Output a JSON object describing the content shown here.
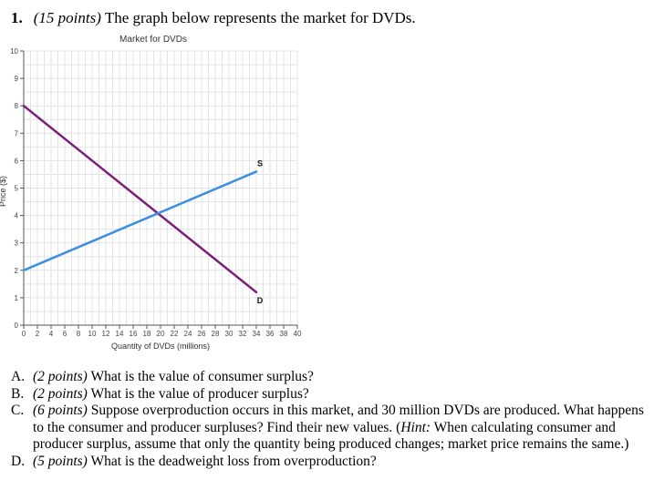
{
  "question": {
    "number": "1.",
    "points": "(15 points)",
    "text": "The graph below represents the market for DVDs."
  },
  "chart_data": {
    "type": "line",
    "title": "Market for DVDs",
    "xlabel": "Quantity of DVDs (millions)",
    "ylabel": "Price ($)",
    "xlim": [
      0,
      40
    ],
    "ylim": [
      0,
      10
    ],
    "xticks": [
      0,
      2,
      4,
      6,
      8,
      10,
      12,
      14,
      16,
      18,
      20,
      22,
      24,
      26,
      28,
      30,
      32,
      34,
      36,
      38,
      40
    ],
    "yticks": [
      0,
      1,
      2,
      3,
      4,
      5,
      6,
      7,
      8,
      9,
      10
    ],
    "grid": true,
    "series": [
      {
        "name": "D",
        "color": "#7b1f7a",
        "points": [
          [
            0,
            8
          ],
          [
            34,
            1.2
          ]
        ]
      },
      {
        "name": "S",
        "color": "#3d8fe3",
        "points": [
          [
            0,
            2
          ],
          [
            34,
            5.6
          ]
        ]
      }
    ]
  },
  "parts": [
    {
      "letter": "A.",
      "points": "(2 points)",
      "text": "What is the value of consumer surplus?"
    },
    {
      "letter": "B.",
      "points": "(2 points)",
      "text": "What is the value of producer surplus?"
    },
    {
      "letter": "C.",
      "points": "(6 points)",
      "text": "Suppose overproduction occurs in this market, and 30 million DVDs are produced. What happens to the consumer and producer surpluses? Find their new values. (",
      "hint_label": "Hint:",
      "hint_text": " When calculating consumer and producer surplus, assume that only the quantity being produced changes; market price remains the same.)"
    },
    {
      "letter": "D.",
      "points": "(5 points)",
      "text": "What is the deadweight loss from overproduction?"
    }
  ]
}
